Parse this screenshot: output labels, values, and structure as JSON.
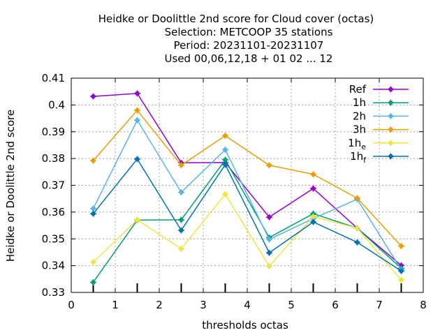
{
  "chart_data": {
    "type": "line",
    "title_lines": [
      "Heidke or Doolittle 2nd score  for Cloud cover (octas)",
      "Selection: METCOOP     35 stations",
      "Period: 20231101-20231107",
      "Used  00,06,12,18 + 01 02 ... 12"
    ],
    "xlabel": "thresholds octas",
    "ylabel": "Heidke or Doolittle 2nd score",
    "xlim": [
      0,
      8
    ],
    "ylim": [
      0.33,
      0.41
    ],
    "xticks": [
      0,
      1,
      2,
      3,
      4,
      5,
      6,
      7,
      8
    ],
    "yticks": [
      0.33,
      0.34,
      0.35,
      0.36,
      0.37,
      0.38,
      0.39,
      0.4,
      0.41
    ],
    "ytick_labels": [
      "0.33",
      "0.34",
      "0.35",
      "0.36",
      "0.37",
      "0.38",
      "0.39",
      "0.4",
      "0.41"
    ],
    "grid": true,
    "legend_position": "top-right",
    "x": [
      0.5,
      1.5,
      2.5,
      3.5,
      4.5,
      5.5,
      6.5,
      7.5
    ],
    "sample_marks_x": [
      0.5,
      1.5,
      2.5,
      3.5,
      4.5,
      5.5,
      6.5,
      7.5
    ],
    "series": [
      {
        "name": "Ref",
        "name_main": "Ref",
        "name_sub": "",
        "color": "#9400d3",
        "values": [
          0.4032,
          0.4043,
          0.3784,
          0.3785,
          0.3581,
          0.3688,
          0.354,
          0.3401
        ]
      },
      {
        "name": "1h",
        "name_main": "1h",
        "name_sub": "",
        "color": "#009e73",
        "values": [
          0.3338,
          0.357,
          0.3571,
          0.3795,
          0.3505,
          0.3594,
          0.354,
          0.339
        ]
      },
      {
        "name": "2h",
        "name_main": "2h",
        "name_sub": "",
        "color": "#56b4e9",
        "values": [
          0.3613,
          0.3943,
          0.3674,
          0.3833,
          0.3498,
          0.3576,
          0.3648,
          0.3385
        ]
      },
      {
        "name": "3h",
        "name_main": "3h",
        "name_sub": "",
        "color": "#e69f00",
        "values": [
          0.3792,
          0.398,
          0.3775,
          0.3885,
          0.3775,
          0.3741,
          0.3652,
          0.3473
        ]
      },
      {
        "name": "1he",
        "name_main": "1h",
        "name_sub": "e",
        "color": "#f0e442",
        "values": [
          0.3413,
          0.3571,
          0.3463,
          0.3667,
          0.3398,
          0.3583,
          0.354,
          0.3346
        ]
      },
      {
        "name": "1hf",
        "name_main": "1h",
        "name_sub": "f",
        "color": "#0072b2",
        "values": [
          0.3594,
          0.3798,
          0.3532,
          0.3777,
          0.3448,
          0.3563,
          0.3487,
          0.338
        ]
      }
    ]
  }
}
